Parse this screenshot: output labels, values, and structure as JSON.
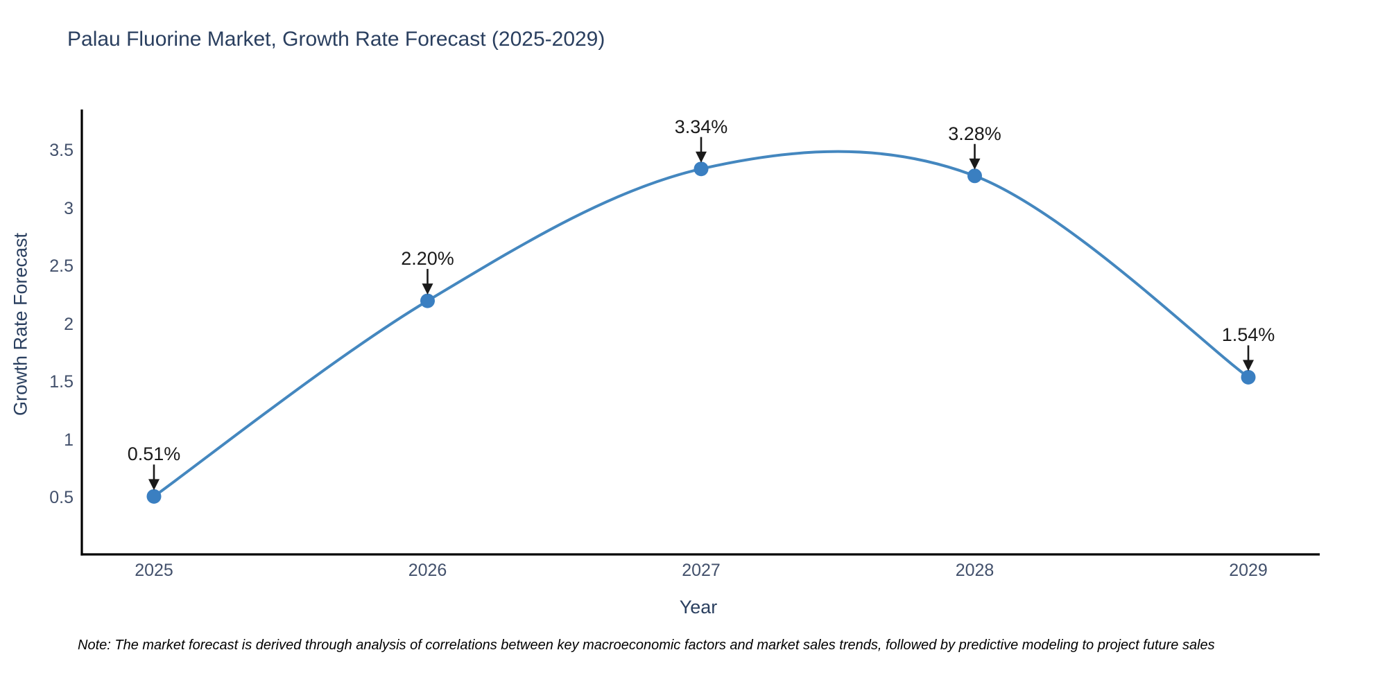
{
  "chart_data": {
    "type": "line",
    "title": "Palau Fluorine Market, Growth Rate Forecast (2025-2029)",
    "xlabel": "Year",
    "ylabel": "Growth Rate Forecast",
    "x": [
      2025,
      2026,
      2027,
      2028,
      2029
    ],
    "values": [
      0.51,
      2.2,
      3.34,
      3.28,
      1.54
    ],
    "point_labels": [
      "0.51%",
      "2.20%",
      "3.34%",
      "3.28%",
      "1.54%"
    ],
    "x_tick_labels": [
      "2025",
      "2026",
      "2027",
      "2028",
      "2029"
    ],
    "y_ticks": [
      0.5,
      1,
      1.5,
      2,
      2.5,
      3,
      3.5
    ],
    "y_tick_labels": [
      "0.5",
      "1",
      "1.5",
      "2",
      "2.5",
      "3",
      "3.5"
    ],
    "ylim": [
      0.0,
      3.87
    ],
    "xlim": [
      2024.74,
      2029.26
    ],
    "line_shape": "spline",
    "grid": false,
    "legend": "none",
    "line_color": "#4487bf",
    "marker_color": "#3a7fc1",
    "axis_color": "#000000",
    "annotation_color": "#1a1a1a",
    "title_color": "#2a3f5f",
    "tick_color": "#42506b",
    "note": "Note: The market forecast is derived through analysis of correlations between key macroeconomic factors and market sales trends, followed by predictive modeling to project future sales"
  }
}
